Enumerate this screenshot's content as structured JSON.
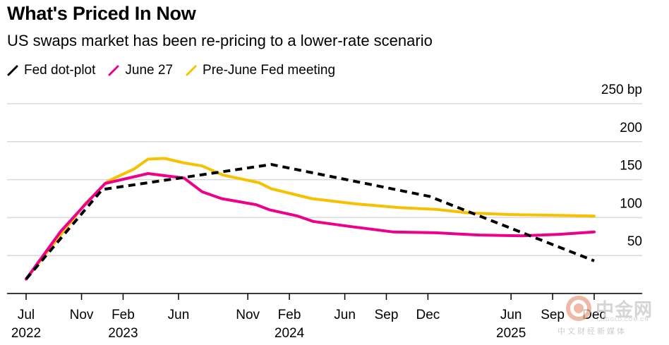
{
  "chart_data": {
    "type": "line",
    "title": "What's Priced In Now",
    "subtitle": "US swaps market has been re-pricing to a lower-rate scenario",
    "y_unit": "bp",
    "ylim": [
      0,
      250
    ],
    "yticks": [
      {
        "value": 50,
        "label": "50"
      },
      {
        "value": 100,
        "label": "100"
      },
      {
        "value": 150,
        "label": "150"
      },
      {
        "value": 200,
        "label": "200"
      },
      {
        "value": 250,
        "label": "250 bp"
      }
    ],
    "xticks": [
      {
        "month": 0,
        "label": "Jul",
        "year": "2022"
      },
      {
        "month": 4,
        "label": "Nov",
        "year": ""
      },
      {
        "month": 7,
        "label": "Feb",
        "year": "2023"
      },
      {
        "month": 11,
        "label": "Jun",
        "year": ""
      },
      {
        "month": 16,
        "label": "Nov",
        "year": ""
      },
      {
        "month": 19,
        "label": "Feb",
        "year": "2024"
      },
      {
        "month": 23,
        "label": "Jun",
        "year": ""
      },
      {
        "month": 26,
        "label": "Sep",
        "year": ""
      },
      {
        "month": 29,
        "label": "Dec",
        "year": ""
      },
      {
        "month": 35,
        "label": "Jun",
        "year": "2025"
      },
      {
        "month": 38,
        "label": "Sep",
        "year": ""
      },
      {
        "month": 41,
        "label": "Dec",
        "year": ""
      }
    ],
    "series": [
      {
        "name": "Fed dot-plot",
        "color": "#000000",
        "dashed": true,
        "points": [
          [
            0,
            19
          ],
          [
            5.5,
            137
          ],
          [
            17.7,
            170
          ],
          [
            29.1,
            128
          ],
          [
            41,
            43
          ]
        ]
      },
      {
        "name": "June 27",
        "color": "#ec008c",
        "dashed": false,
        "points": [
          [
            0,
            19
          ],
          [
            2.5,
            82
          ],
          [
            4.2,
            116
          ],
          [
            5.7,
            145
          ],
          [
            8.8,
            158
          ],
          [
            11.4,
            152
          ],
          [
            12.7,
            134
          ],
          [
            14.1,
            125
          ],
          [
            16.6,
            117
          ],
          [
            17.6,
            110
          ],
          [
            19.6,
            102
          ],
          [
            20.7,
            95
          ],
          [
            23.5,
            88
          ],
          [
            26.5,
            81
          ],
          [
            29.5,
            80
          ],
          [
            32.7,
            77
          ],
          [
            35.8,
            76
          ],
          [
            38.5,
            78
          ],
          [
            41,
            81
          ]
        ]
      },
      {
        "name": "Pre-June Fed meeting",
        "color": "#f7c000",
        "dashed": false,
        "points": [
          [
            0,
            19
          ],
          [
            4.2,
            117
          ],
          [
            5.9,
            148
          ],
          [
            7.8,
            164
          ],
          [
            8.8,
            177
          ],
          [
            10,
            178
          ],
          [
            11.4,
            172
          ],
          [
            12.7,
            168
          ],
          [
            14.2,
            156
          ],
          [
            16.8,
            146
          ],
          [
            17.7,
            138
          ],
          [
            20.6,
            125
          ],
          [
            23.8,
            118
          ],
          [
            27,
            113
          ],
          [
            29.5,
            111
          ],
          [
            32,
            106
          ],
          [
            35,
            104
          ],
          [
            38.5,
            103
          ],
          [
            41,
            102
          ]
        ]
      }
    ]
  },
  "watermark": {
    "cn": "中金网",
    "en": "CNGOLD.COM.CN",
    "sub": "中文财经新媒体"
  }
}
